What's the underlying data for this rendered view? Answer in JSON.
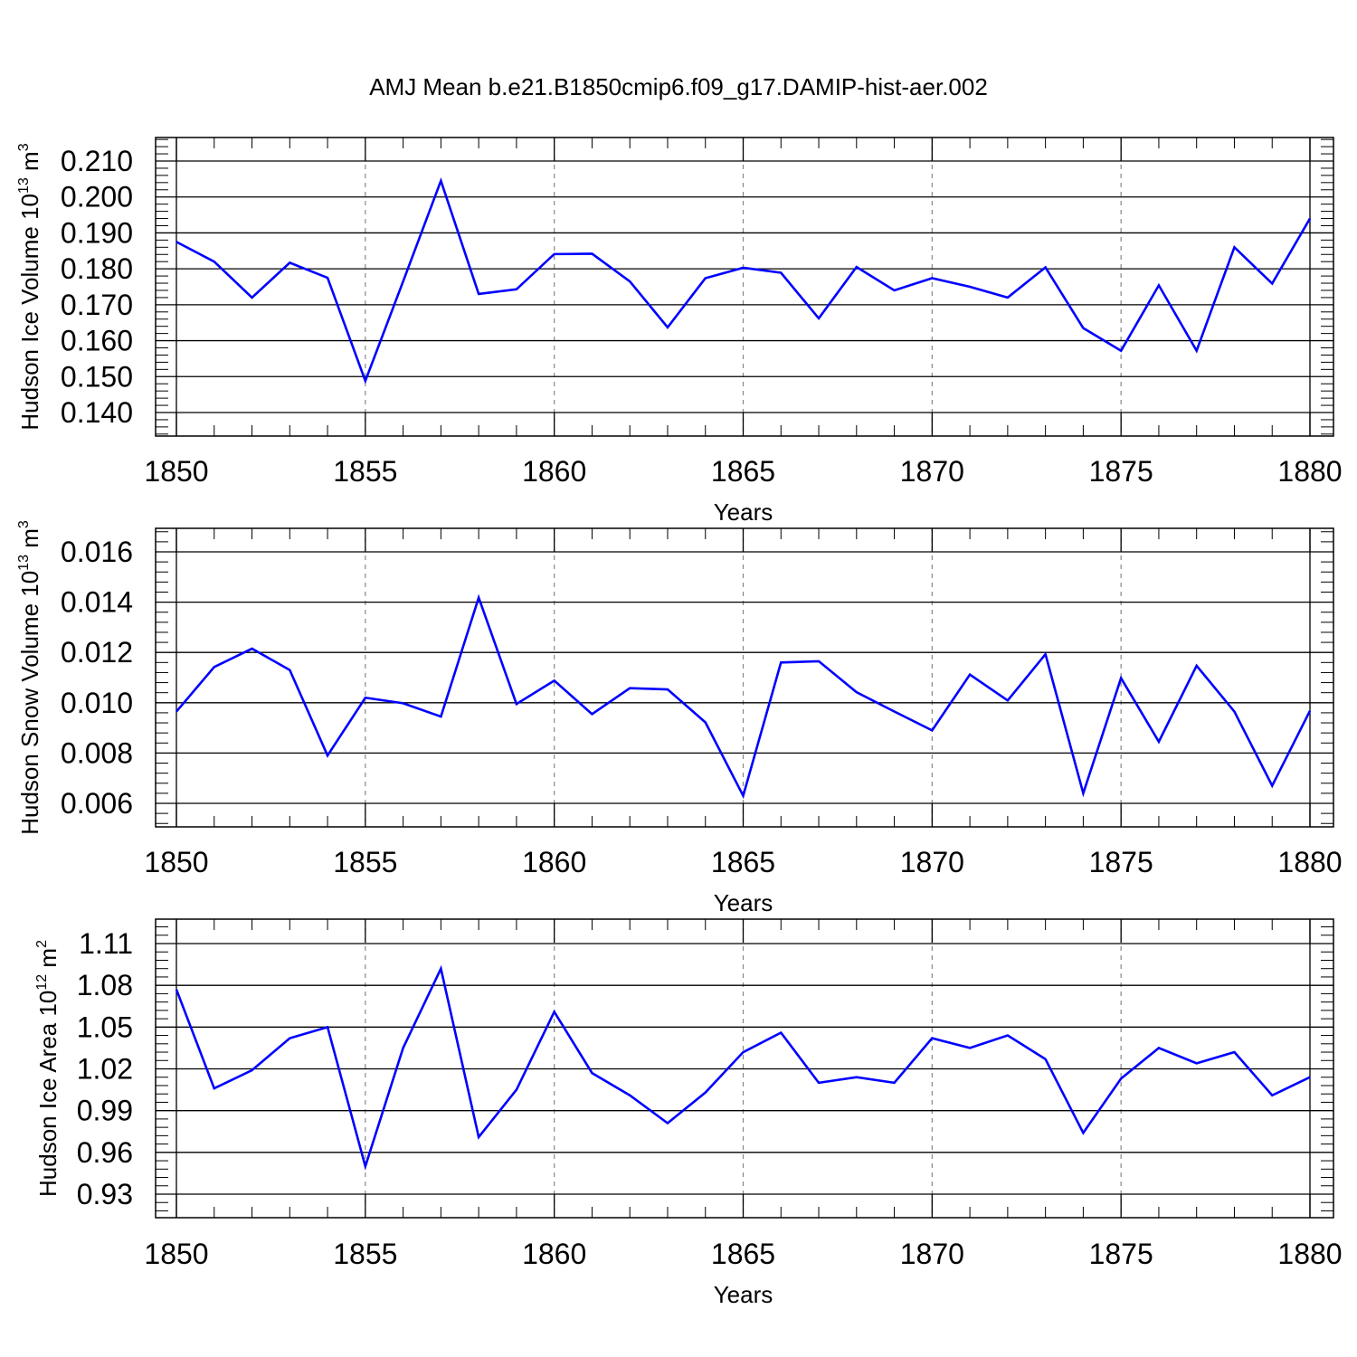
{
  "title": "AMJ Mean b.e21.B1850cmip6.f09_g17.DAMIP-hist-aer.002",
  "line_color": "#0000ff",
  "chart_data": [
    {
      "type": "line",
      "ylabel": {
        "text": "Hudson Ice Volume 10",
        "exp": "13",
        "unit": " m",
        "unit_exp": "3"
      },
      "xlabel": "Years",
      "xlim": [
        1850,
        1880
      ],
      "ylim": [
        0.14,
        0.21
      ],
      "yticks": [
        "0.140",
        "0.150",
        "0.160",
        "0.170",
        "0.180",
        "0.190",
        "0.200",
        "0.210"
      ],
      "xticks": [
        "1850",
        "1855",
        "1860",
        "1865",
        "1870",
        "1875",
        "1880"
      ],
      "x": [
        1850,
        1851,
        1852,
        1853,
        1854,
        1855,
        1856,
        1857,
        1858,
        1859,
        1860,
        1861,
        1862,
        1863,
        1864,
        1865,
        1866,
        1867,
        1868,
        1869,
        1870,
        1871,
        1872,
        1873,
        1874,
        1875,
        1876,
        1877,
        1878,
        1879,
        1880
      ],
      "y": [
        0.1875,
        0.182,
        0.172,
        0.1817,
        0.1775,
        0.1488,
        0.1765,
        0.2045,
        0.173,
        0.1743,
        0.1841,
        0.1842,
        0.1765,
        0.1637,
        0.1774,
        0.1803,
        0.1789,
        0.1662,
        0.1805,
        0.174,
        0.1774,
        0.175,
        0.172,
        0.1804,
        0.1635,
        0.1572,
        0.1754,
        0.1572,
        0.186,
        0.1759,
        0.194
      ]
    },
    {
      "type": "line",
      "ylabel": {
        "text": "Hudson Snow Volume 10",
        "exp": "13",
        "unit": " m",
        "unit_exp": "3"
      },
      "xlabel": "Years",
      "xlim": [
        1850,
        1880
      ],
      "ylim": [
        0.006,
        0.016
      ],
      "yticks": [
        "0.006",
        "0.008",
        "0.010",
        "0.012",
        "0.014",
        "0.016"
      ],
      "xticks": [
        "1850",
        "1855",
        "1860",
        "1865",
        "1870",
        "1875",
        "1880"
      ],
      "x": [
        1850,
        1851,
        1852,
        1853,
        1854,
        1855,
        1856,
        1857,
        1858,
        1859,
        1860,
        1861,
        1862,
        1863,
        1864,
        1865,
        1866,
        1867,
        1868,
        1869,
        1870,
        1871,
        1872,
        1873,
        1874,
        1875,
        1876,
        1877,
        1878,
        1879,
        1880
      ],
      "y": [
        0.00965,
        0.01142,
        0.01215,
        0.0113,
        0.0079,
        0.0102,
        0.00998,
        0.00945,
        0.01418,
        0.00995,
        0.01088,
        0.00955,
        0.01058,
        0.01053,
        0.00922,
        0.0063,
        0.0116,
        0.01165,
        0.01042,
        0.00965,
        0.0089,
        0.01112,
        0.01009,
        0.01193,
        0.0064,
        0.01098,
        0.00845,
        0.01147,
        0.00965,
        0.0067,
        0.00968
      ]
    },
    {
      "type": "line",
      "ylabel": {
        "text": "Hudson Ice Area 10",
        "exp": "12",
        "unit": " m",
        "unit_exp": "2"
      },
      "xlabel": "Years",
      "xlim": [
        1850,
        1880
      ],
      "ylim": [
        0.93,
        1.11
      ],
      "yticks": [
        "0.93",
        "0.96",
        "0.99",
        "1.02",
        "1.05",
        "1.08",
        "1.11"
      ],
      "xticks": [
        "1850",
        "1855",
        "1860",
        "1865",
        "1870",
        "1875",
        "1880"
      ],
      "x": [
        1850,
        1851,
        1852,
        1853,
        1854,
        1855,
        1856,
        1857,
        1858,
        1859,
        1860,
        1861,
        1862,
        1863,
        1864,
        1865,
        1866,
        1867,
        1868,
        1869,
        1870,
        1871,
        1872,
        1873,
        1874,
        1875,
        1876,
        1877,
        1878,
        1879,
        1880
      ],
      "y": [
        1.077,
        1.006,
        1.019,
        1.042,
        1.05,
        0.95,
        1.035,
        1.092,
        0.971,
        1.005,
        1.061,
        1.017,
        1.001,
        0.981,
        1.003,
        1.032,
        1.046,
        1.01,
        1.014,
        1.01,
        1.042,
        1.035,
        1.044,
        1.027,
        0.974,
        1.013,
        1.035,
        1.024,
        1.032,
        1.001,
        1.014
      ]
    }
  ]
}
